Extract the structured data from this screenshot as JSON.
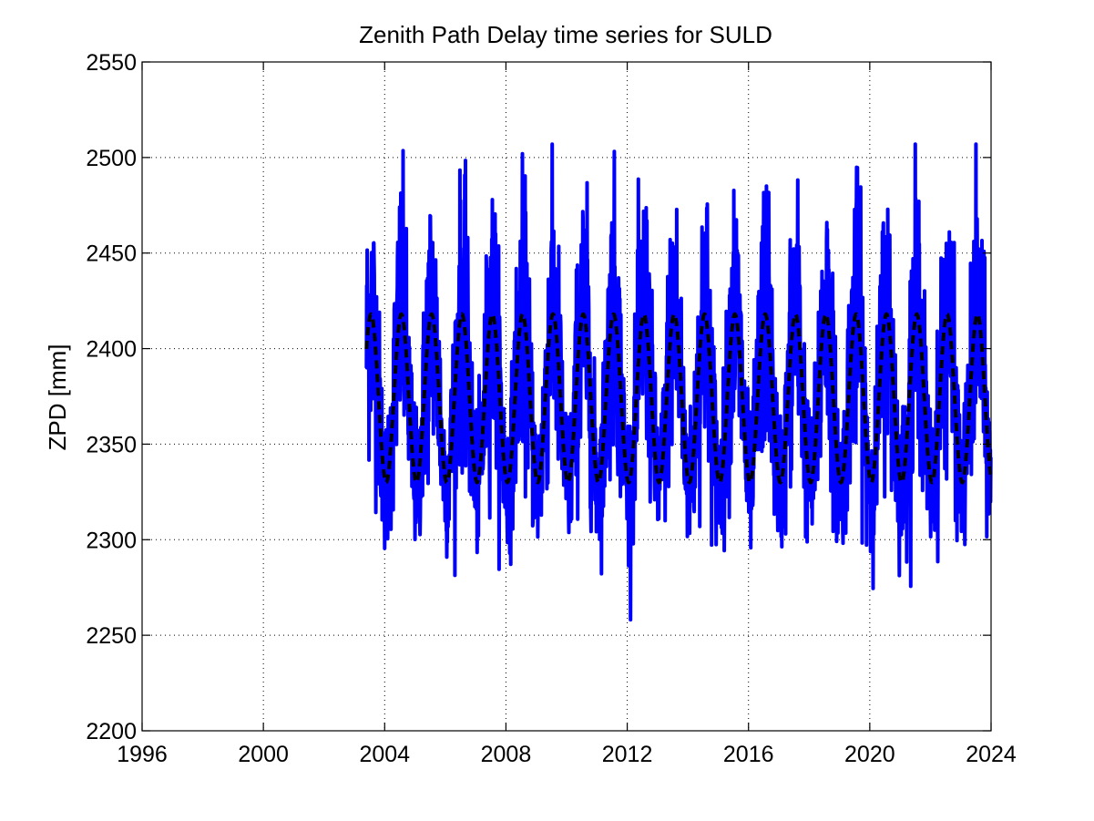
{
  "chart_data": {
    "type": "line",
    "title": "Zenith Path Delay time series for SULD",
    "xlabel": "",
    "ylabel": "ZPD [mm]",
    "xlim": [
      1996,
      2024
    ],
    "ylim": [
      2200,
      2550
    ],
    "x_ticks": [
      1996,
      2000,
      2004,
      2008,
      2012,
      2016,
      2020,
      2024
    ],
    "y_ticks": [
      2200,
      2250,
      2300,
      2350,
      2400,
      2450,
      2500,
      2550
    ],
    "grid": true,
    "legend": "none",
    "series": [
      {
        "style": "solid",
        "color": "#0000ff",
        "x_start": 2003.4,
        "x_end": 2024.0,
        "mean": 2374,
        "seasonal_amplitude": 44,
        "envelope_max": 2507,
        "envelope_min": 2237
      },
      {
        "style": "dashed",
        "color": "#000000",
        "x_start": 2003.4,
        "x_end": 2024.0,
        "mean": 2374,
        "seasonal_amplitude": 44,
        "max": 2418,
        "min": 2330
      }
    ]
  }
}
